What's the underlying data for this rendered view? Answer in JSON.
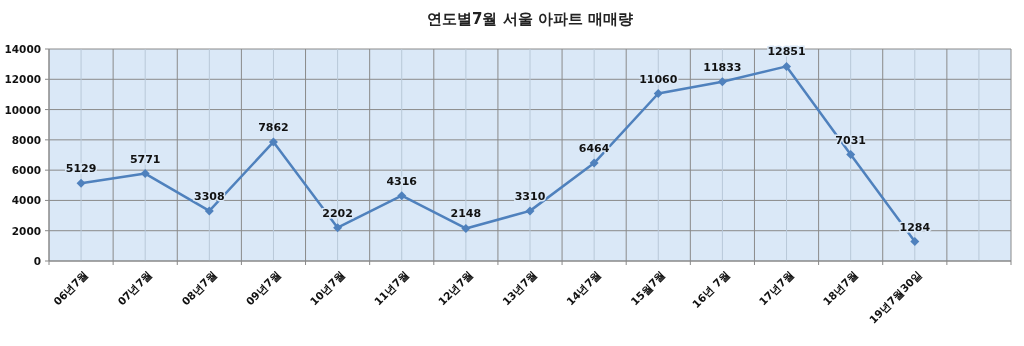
{
  "chart_data": {
    "type": "line",
    "title": "연도별7월 서울 아파트 매매량",
    "categories": [
      "06년7월",
      "07년7월",
      "08년7월",
      "09년7월",
      "10년7월",
      "11년7월",
      "12년7월",
      "13년7월",
      "14년7월",
      "15월7월",
      "16년 7월",
      "17년7월",
      "18년7월",
      "19년7월30일",
      null
    ],
    "series": [
      {
        "color": "#4f81bd",
        "values": [
          5129,
          5771,
          3308,
          7862,
          2202,
          4316,
          2148,
          3310,
          6464,
          11060,
          11833,
          12851,
          7031,
          1284,
          null
        ]
      }
    ],
    "ylim": [
      0,
      14000
    ],
    "yticks": [
      0,
      2000,
      4000,
      6000,
      8000,
      10000,
      12000,
      14000
    ],
    "grid": true,
    "data_labels": true,
    "marker": "diamond"
  }
}
